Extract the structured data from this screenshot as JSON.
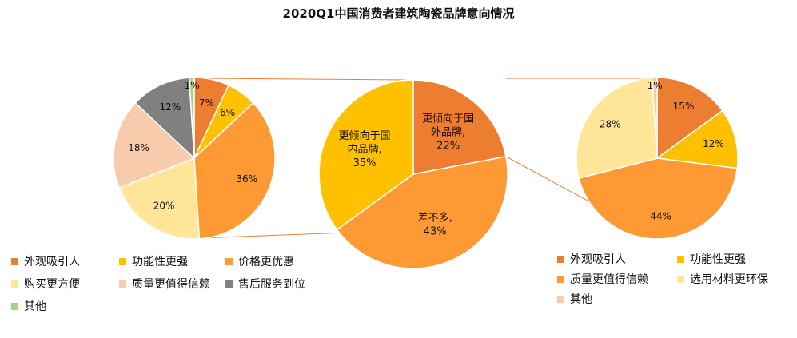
{
  "chart_data": {
    "title": "2020Q1中国消费者建筑陶瓷品牌意向情况",
    "charts": [
      {
        "type": "pie",
        "labels": [
          "外观吸引人",
          "功能性更强",
          "价格更优惠",
          "购买更方便",
          "质量更值得信赖",
          "售后服务到位",
          "其他"
        ],
        "values": [
          7,
          6,
          36,
          20,
          18,
          12,
          1
        ],
        "value_labels": [
          "7%",
          "6%",
          "36%",
          "20%",
          "18%",
          "12%",
          "1%"
        ],
        "colors": [
          "#ED7D31",
          "#FFC000",
          "#FF9933",
          "#FFE699",
          "#F8CBAD",
          "#808080",
          "#A9D18E"
        ],
        "legend_position": "bottom"
      },
      {
        "type": "pie",
        "labels": [
          "更倾向于国外品牌",
          "差不多",
          "更倾向于国内品牌"
        ],
        "values": [
          22,
          43,
          35
        ],
        "data_labels": [
          [
            "更倾向于国",
            "外品牌,",
            "22%"
          ],
          [
            "差不多,",
            "43%"
          ],
          [
            "更倾向于国",
            "内品牌,",
            "35%"
          ]
        ],
        "colors": [
          "#ED7D31",
          "#FF9933",
          "#FFC000"
        ],
        "legend_position": "none"
      },
      {
        "type": "pie",
        "labels": [
          "外观吸引人",
          "功能性更强",
          "质量更值得信赖",
          "选用材料更环保",
          "其他"
        ],
        "values": [
          15,
          12,
          44,
          28,
          1
        ],
        "value_labels": [
          "15%",
          "12%",
          "44%",
          "28%",
          "1%"
        ],
        "colors": [
          "#ED7D31",
          "#FFC000",
          "#FF9933",
          "#FFE699",
          "#F8CBAD"
        ],
        "legend_position": "bottom"
      }
    ]
  }
}
